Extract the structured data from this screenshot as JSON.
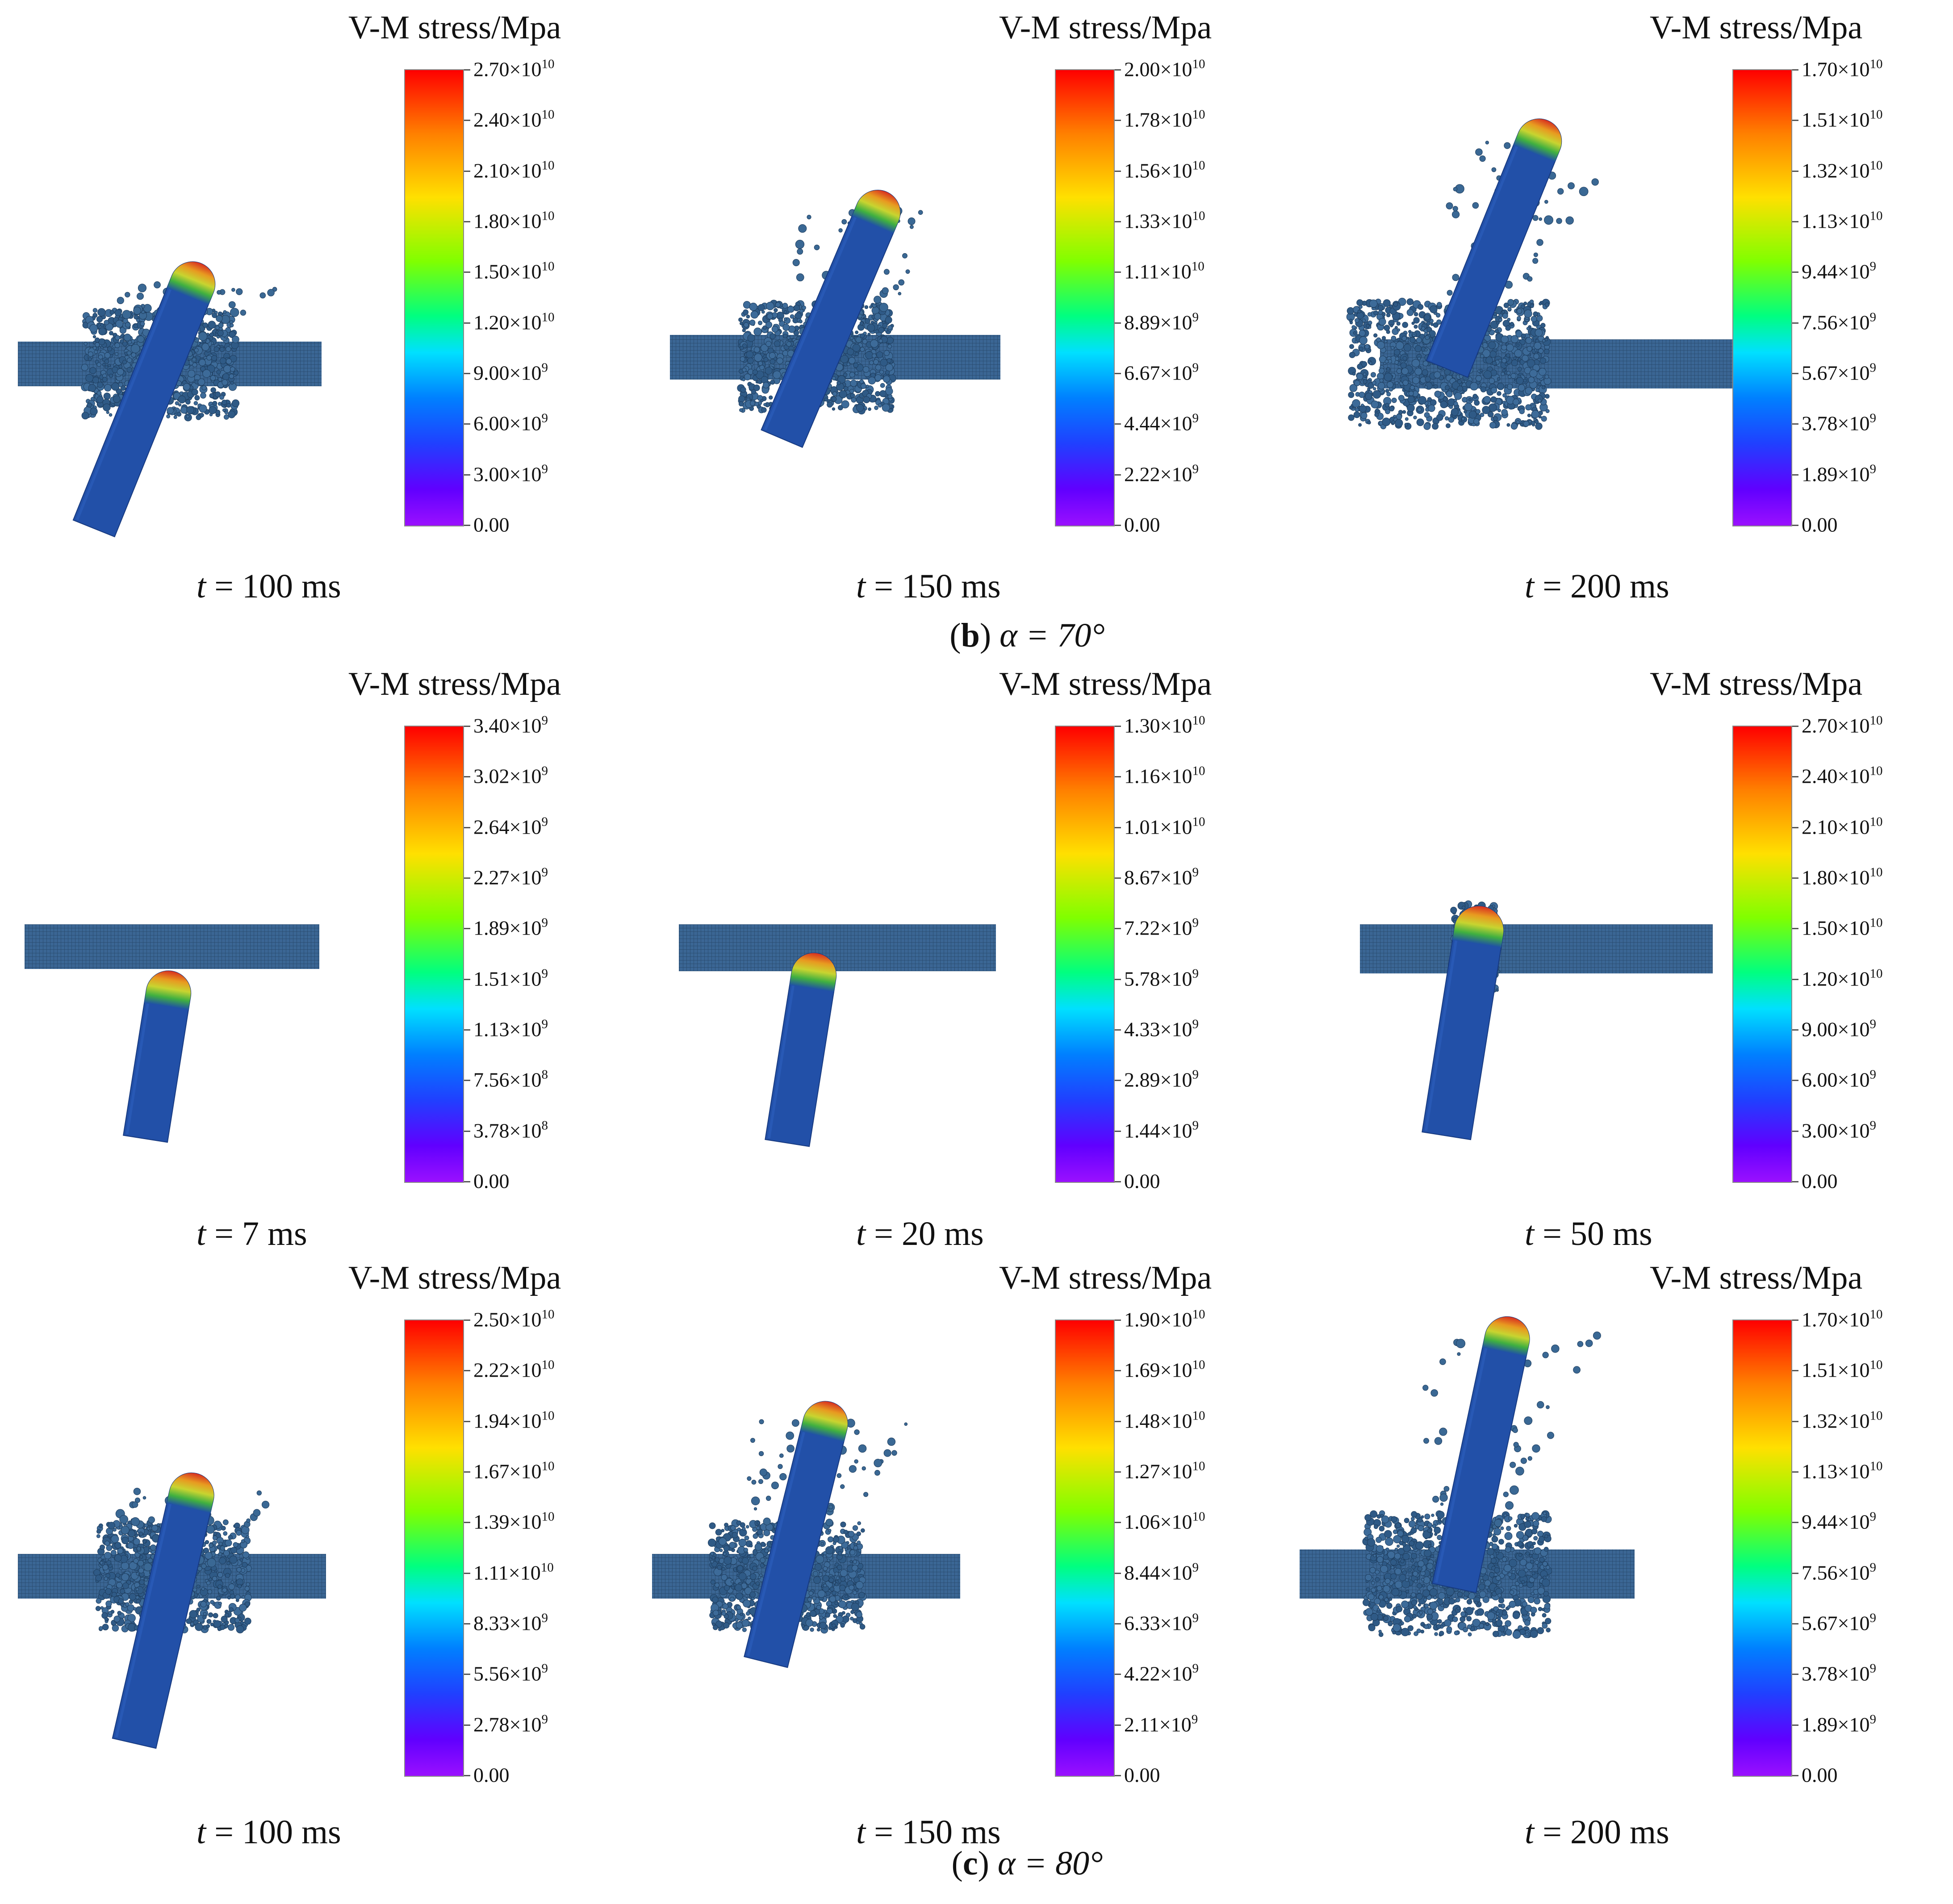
{
  "colorbar_title": "V-M stress/Mpa",
  "rows": [
    {
      "label_letter": "b",
      "label_angle": "α = 70°",
      "panels": [
        {
          "time": "t = 100 ms",
          "ticks": [
            "2.70×10|10",
            "2.40×10|10",
            "2.10×10|10",
            "1.80×10|10",
            "1.50×10|10",
            "1.20×10|10",
            "9.00×10|9",
            "6.00×10|9",
            "3.00×10|9",
            "0.00"
          ]
        },
        {
          "time": "t = 150 ms",
          "ticks": [
            "2.00×10|10",
            "1.78×10|10",
            "1.56×10|10",
            "1.33×10|10",
            "1.11×10|10",
            "8.89×10|9",
            "6.67×10|9",
            "4.44×10|9",
            "2.22×10|9",
            "0.00"
          ]
        },
        {
          "time": "t = 200 ms",
          "ticks": [
            "1.70×10|10",
            "1.51×10|10",
            "1.32×10|10",
            "1.13×10|10",
            "9.44×10|9",
            "7.56×10|9",
            "5.67×10|9",
            "3.78×10|9",
            "1.89×10|9",
            "0.00"
          ]
        }
      ]
    },
    {
      "label_letter": "",
      "label_angle": "",
      "panels": [
        {
          "time": "t = 7 ms",
          "ticks": [
            "3.40×10|9",
            "3.02×10|9",
            "2.64×10|9",
            "2.27×10|9",
            "1.89×10|9",
            "1.51×10|9",
            "1.13×10|9",
            "7.56×10|8",
            "3.78×10|8",
            "0.00"
          ]
        },
        {
          "time": "t = 20 ms",
          "ticks": [
            "1.30×10|10",
            "1.16×10|10",
            "1.01×10|10",
            "8.67×10|9",
            "7.22×10|9",
            "5.78×10|9",
            "4.33×10|9",
            "2.89×10|9",
            "1.44×10|9",
            "0.00"
          ]
        },
        {
          "time": "t = 50 ms",
          "ticks": [
            "2.70×10|10",
            "2.40×10|10",
            "2.10×10|10",
            "1.80×10|10",
            "1.50×10|10",
            "1.20×10|10",
            "9.00×10|9",
            "6.00×10|9",
            "3.00×10|9",
            "0.00"
          ]
        }
      ]
    },
    {
      "label_letter": "c",
      "label_angle": "α = 80°",
      "panels": [
        {
          "time": "t = 100 ms",
          "ticks": [
            "2.50×10|10",
            "2.22×10|10",
            "1.94×10|10",
            "1.67×10|10",
            "1.39×10|10",
            "1.11×10|10",
            "8.33×10|9",
            "5.56×10|9",
            "2.78×10|9",
            "0.00"
          ]
        },
        {
          "time": "t = 150 ms",
          "ticks": [
            "1.90×10|10",
            "1.69×10|10",
            "1.48×10|10",
            "1.27×10|10",
            "1.06×10|10",
            "8.44×10|9",
            "6.33×10|9",
            "4.22×10|9",
            "2.11×10|9",
            "0.00"
          ]
        },
        {
          "time": "t = 200 ms",
          "ticks": [
            "1.70×10|10",
            "1.51×10|10",
            "1.32×10|10",
            "1.13×10|10",
            "9.44×10|9",
            "7.56×10|9",
            "5.67×10|9",
            "3.78×10|9",
            "1.89×10|9",
            "0.00"
          ]
        }
      ]
    }
  ]
}
